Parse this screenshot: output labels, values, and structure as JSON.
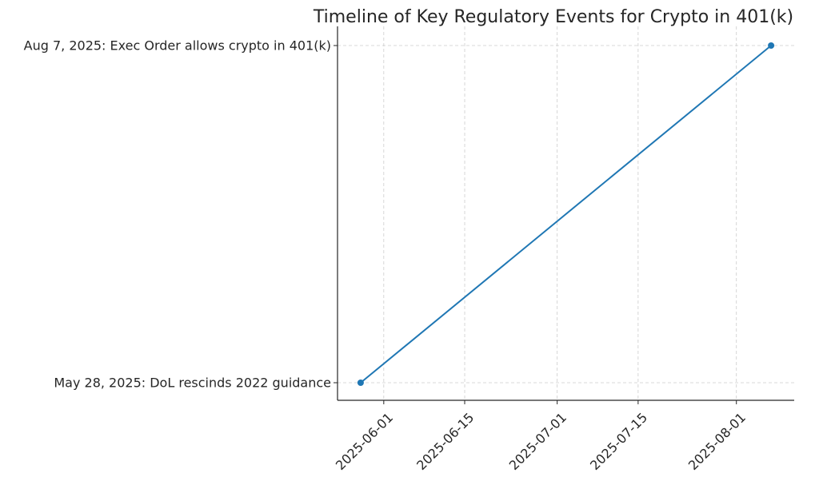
{
  "chart_data": {
    "type": "line",
    "title": "Timeline of Key Regulatory Events for Crypto in 401(k)",
    "xlabel": "",
    "ylabel": "",
    "x_type": "date",
    "xlim": [
      "2025-05-24",
      "2025-08-11"
    ],
    "x_ticks": [
      "2025-06-01",
      "2025-06-15",
      "2025-07-01",
      "2025-07-15",
      "2025-08-01"
    ],
    "y_categories": [
      "May 28, 2025: DoL rescinds 2022 guidance",
      "Aug 7, 2025: Exec Order allows crypto in 401(k)"
    ],
    "series": [
      {
        "color": "#1f77b4",
        "points": [
          {
            "x": "2025-05-28",
            "y": "May 28, 2025: DoL rescinds 2022 guidance"
          },
          {
            "x": "2025-08-07",
            "y": "Aug 7, 2025: Exec Order allows crypto in 401(k)"
          }
        ]
      }
    ],
    "grid": true,
    "legend": "none"
  }
}
